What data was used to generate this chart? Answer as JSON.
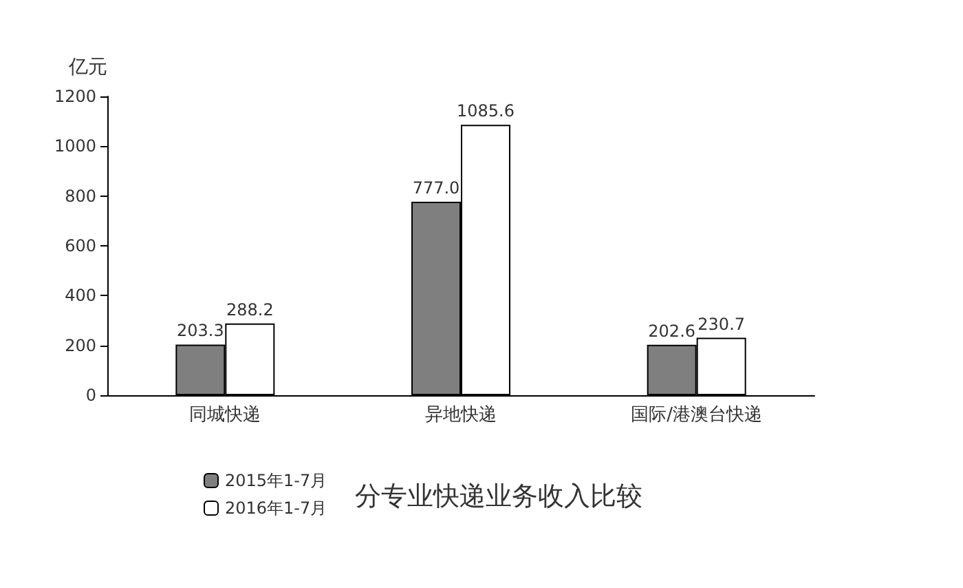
{
  "chart_data": {
    "type": "bar",
    "title": "分专业快递业务收入比较",
    "ylabel": "亿元",
    "categories": [
      "同城快递",
      "异地快递",
      "国际/港澳台快递"
    ],
    "series": [
      {
        "name": "2015年1-7月",
        "color": "#7f7f7f",
        "values": [
          203.3,
          777.0,
          202.6
        ],
        "value_labels": [
          "203.3",
          "777.0",
          "202.6"
        ]
      },
      {
        "name": "2016年1-7月",
        "color": "#ffffff",
        "values": [
          288.2,
          1085.6,
          230.7
        ],
        "value_labels": [
          "288.2",
          "1085.6",
          "230.7"
        ]
      }
    ],
    "ylim": [
      0,
      1200
    ],
    "yticks": [
      0,
      200,
      400,
      600,
      800,
      1000,
      1200
    ],
    "grid": false,
    "legend": "bottom left"
  }
}
